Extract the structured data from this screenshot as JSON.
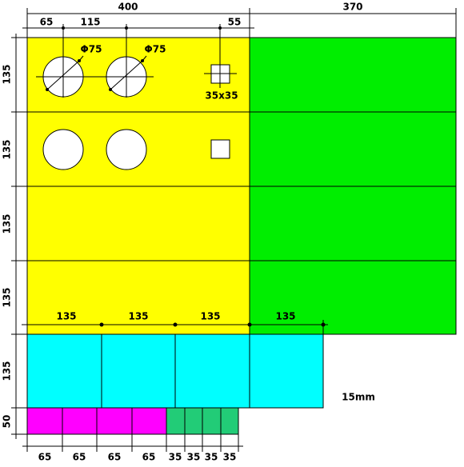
{
  "overall_width": "400",
  "side_width": "370",
  "top_offsets": [
    "65",
    "115",
    "55"
  ],
  "hole_labels": [
    "Φ75",
    "Φ75"
  ],
  "square_label": "35x35",
  "row_heights": [
    "135",
    "135",
    "135",
    "135",
    "135",
    "50"
  ],
  "cyan_widths": [
    "135",
    "135",
    "135",
    "135"
  ],
  "note": "15mm",
  "bottom_widths": [
    "65",
    "65",
    "65",
    "65",
    "35",
    "35",
    "35",
    "35"
  ]
}
